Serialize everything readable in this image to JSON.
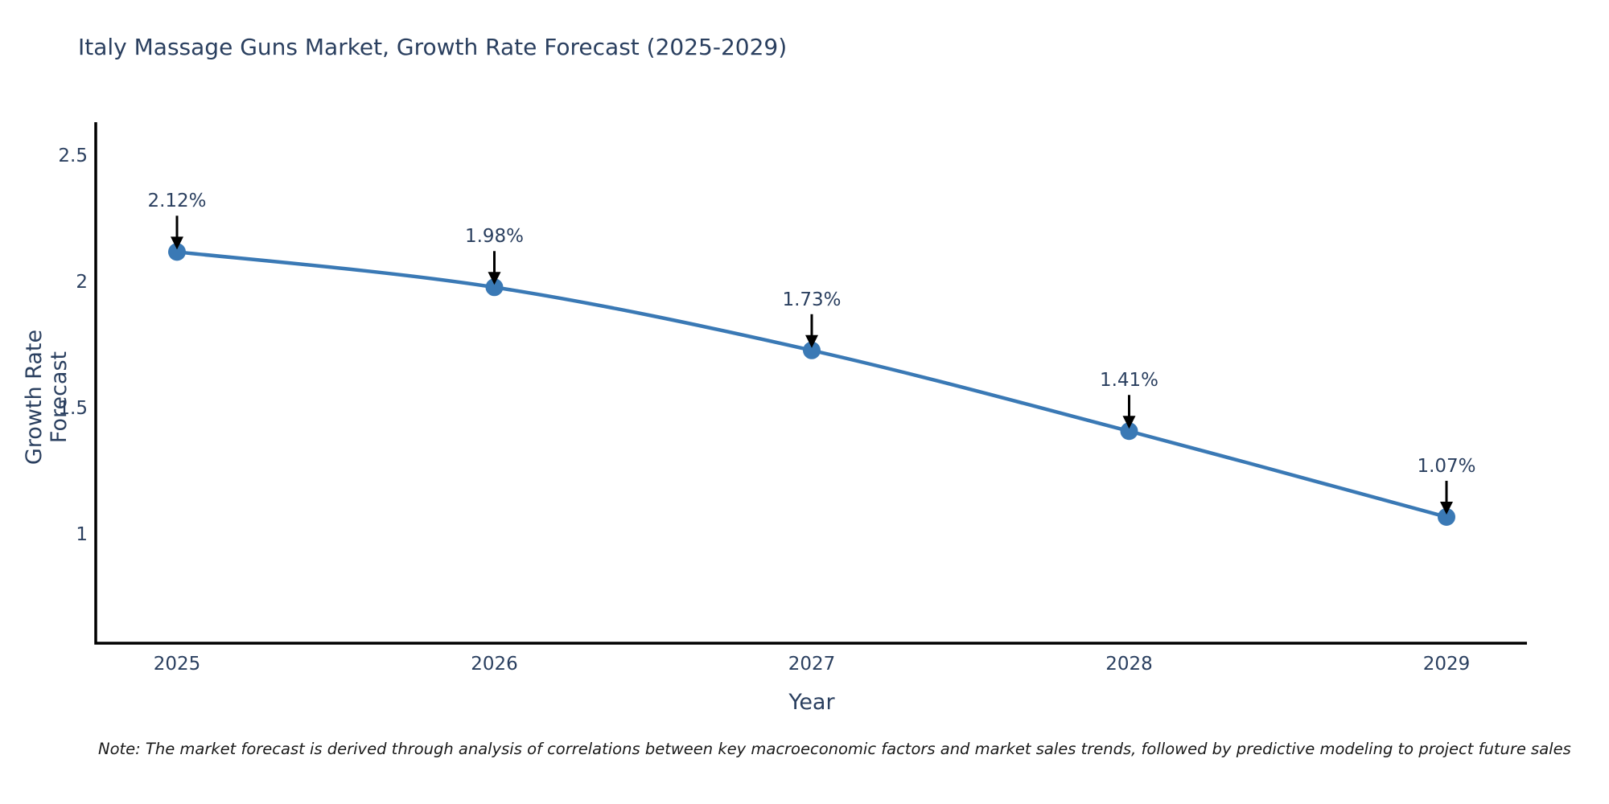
{
  "title": "Italy Massage Guns Market, Growth Rate Forecast (2025-2029)",
  "note": "Note: The market forecast is derived through analysis of correlations between key macroeconomic factors and market sales trends, followed by predictive modeling to project future sales",
  "chart_data": {
    "type": "line",
    "title": "Italy Massage Guns Market, Growth Rate Forecast (2025-2029)",
    "xlabel": "Year",
    "ylabel": "Growth Rate Forecast",
    "categories": [
      "2025",
      "2026",
      "2027",
      "2028",
      "2029"
    ],
    "values": [
      2.12,
      1.98,
      1.73,
      1.41,
      1.07
    ],
    "point_labels": [
      "2.12%",
      "1.98%",
      "1.73%",
      "1.41%",
      "1.07%"
    ],
    "yticks": [
      2.5,
      2,
      1.5,
      1
    ],
    "ytick_labels": [
      "2.5",
      "2",
      "1.5",
      "1"
    ],
    "ylim": [
      0.57,
      2.63
    ],
    "grid": false,
    "legend": "none",
    "line_shape": "spline",
    "annotations": "value labels with downward arrows above each point",
    "colors": {
      "line": "#3a79b5",
      "marker": "#3a79b5",
      "arrow": "#000000",
      "axis": "#000000",
      "text": "#2a3f5f"
    }
  }
}
